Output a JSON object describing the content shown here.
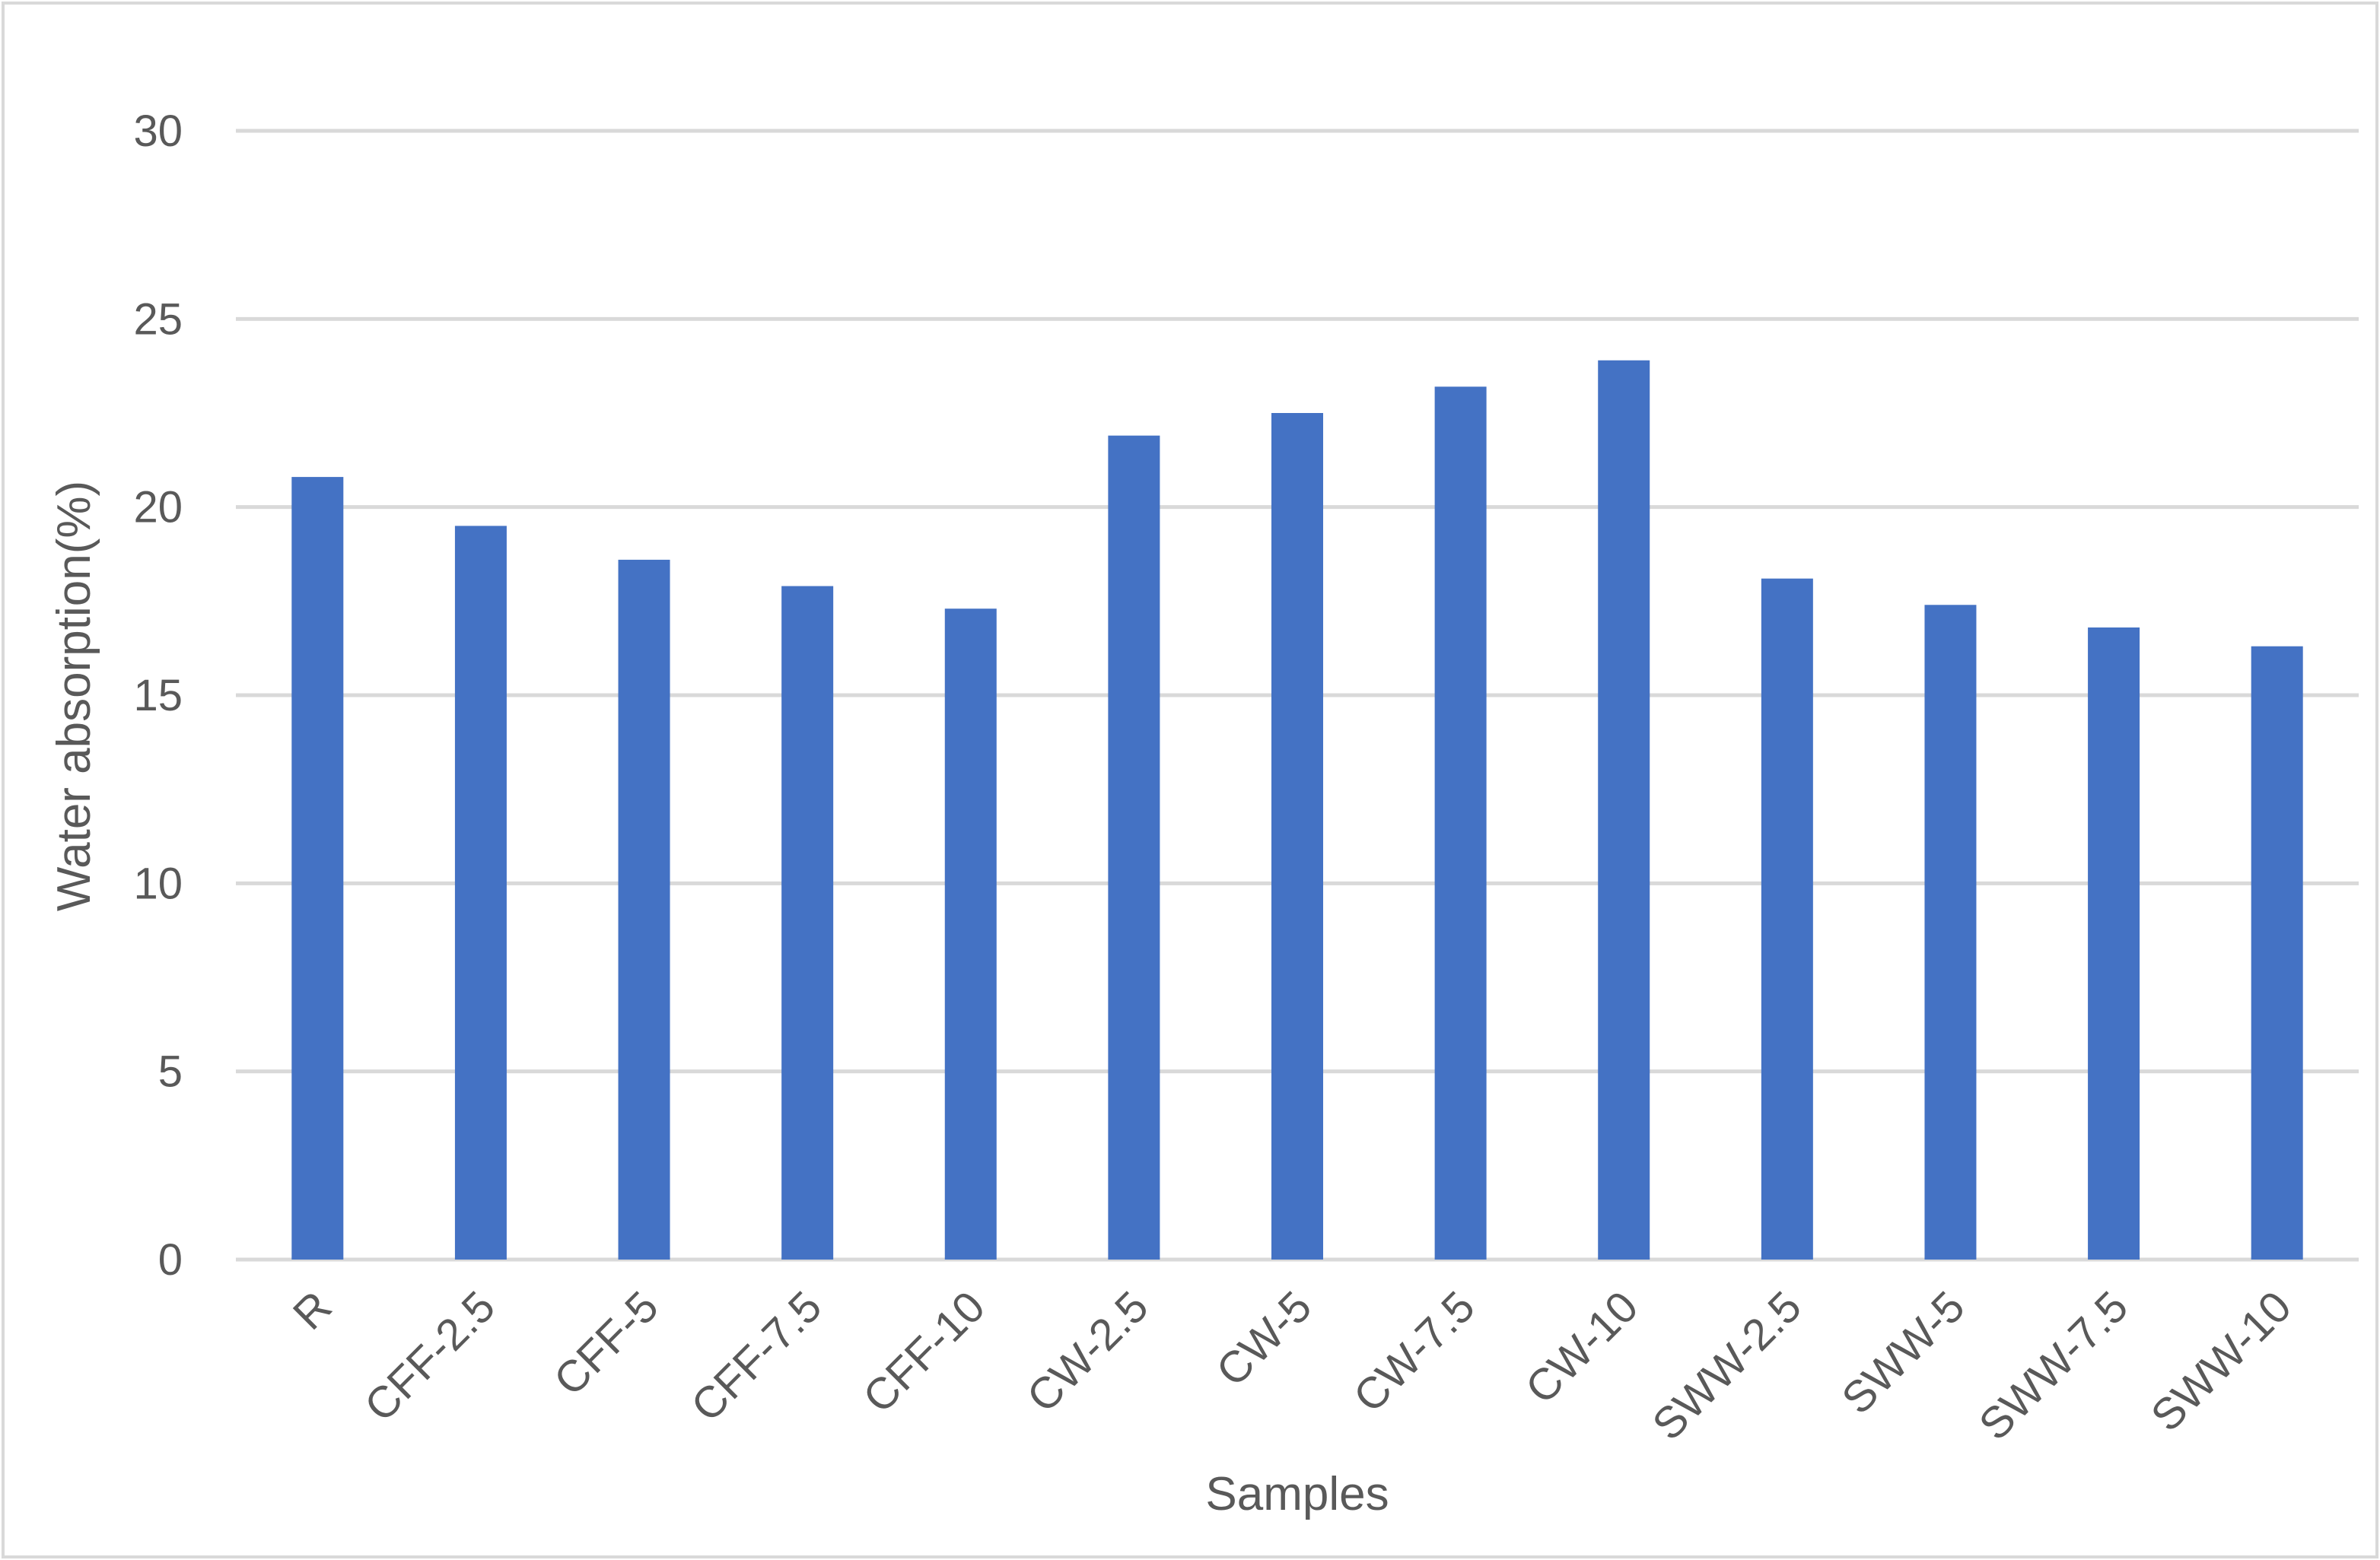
{
  "chart_data": {
    "type": "bar",
    "title": "",
    "xlabel": "Samples",
    "ylabel": "Water absorption(%)",
    "categories": [
      "R",
      "CFF-2.5",
      "CFF-5",
      "CFF-7.5",
      "CFF-10",
      "CW-2.5",
      "CW-5",
      "CW-7.5",
      "CW-10",
      "SWW-2.5",
      "SWW-5",
      "SWW-7.5",
      "SWW-10"
    ],
    "values": [
      20.8,
      19.5,
      18.6,
      17.9,
      17.3,
      21.9,
      22.5,
      23.2,
      23.9,
      18.1,
      17.4,
      16.8,
      16.3
    ],
    "ylim": [
      0,
      30
    ],
    "yticks": [
      0,
      5,
      10,
      15,
      20,
      25,
      30
    ],
    "grid": true,
    "legend": "none",
    "bar_color": "#4472c4"
  }
}
